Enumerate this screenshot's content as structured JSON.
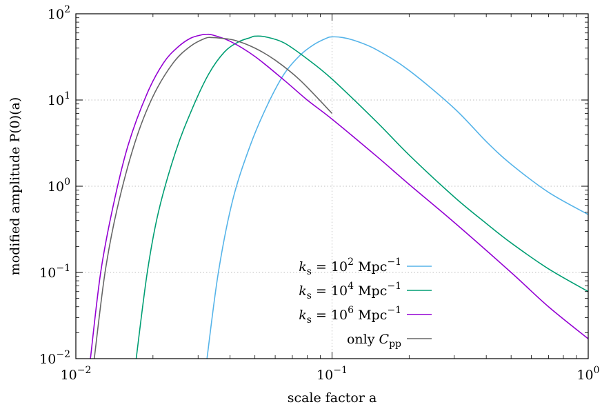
{
  "chart_data": {
    "type": "line",
    "xlabel": "scale factor a",
    "ylabel": "modified amplitude P(0)(a)",
    "x_scale": "log",
    "y_scale": "log",
    "xlim": [
      0.01,
      1
    ],
    "ylim": [
      0.01,
      100
    ],
    "grid": true,
    "legend_position": "bottom-center",
    "x_ticks": [
      {
        "base": "10",
        "exp": "−2"
      },
      {
        "base": "10",
        "exp": "−1"
      },
      {
        "base": "10",
        "exp": "0"
      }
    ],
    "y_ticks": [
      {
        "base": "10",
        "exp": "−2"
      },
      {
        "base": "10",
        "exp": "−1"
      },
      {
        "base": "10",
        "exp": "0"
      },
      {
        "base": "10",
        "exp": "1"
      },
      {
        "base": "10",
        "exp": "2"
      }
    ],
    "series": [
      {
        "legend": {
          "var": "k",
          "sub": "s",
          "mid": " = 10",
          "exp": "2",
          "unit": " Mpc",
          "unit_exp": "−1"
        },
        "color": "#56b4e9",
        "points": [
          [
            0.0325,
            0.01
          ],
          [
            0.036,
            0.1
          ],
          [
            0.041,
            0.7
          ],
          [
            0.048,
            3.0
          ],
          [
            0.056,
            8.8
          ],
          [
            0.065,
            20
          ],
          [
            0.075,
            33
          ],
          [
            0.085,
            44
          ],
          [
            0.095,
            52
          ],
          [
            0.1,
            54
          ],
          [
            0.11,
            53
          ],
          [
            0.125,
            48
          ],
          [
            0.15,
            38
          ],
          [
            0.2,
            22
          ],
          [
            0.3,
            8
          ],
          [
            0.4,
            3.3
          ],
          [
            0.5,
            1.8
          ],
          [
            0.7,
            0.85
          ],
          [
            1.0,
            0.47
          ]
        ]
      },
      {
        "legend": {
          "var": "k",
          "sub": "s",
          "mid": " = 10",
          "exp": "4",
          "unit": " Mpc",
          "unit_exp": "−1"
        },
        "color": "#009e73",
        "points": [
          [
            0.0172,
            0.01
          ],
          [
            0.019,
            0.1
          ],
          [
            0.021,
            0.5
          ],
          [
            0.0245,
            2.5
          ],
          [
            0.0285,
            8
          ],
          [
            0.033,
            20
          ],
          [
            0.038,
            36
          ],
          [
            0.043,
            47
          ],
          [
            0.048,
            53
          ],
          [
            0.05,
            55
          ],
          [
            0.055,
            54
          ],
          [
            0.065,
            46
          ],
          [
            0.08,
            30
          ],
          [
            0.1,
            17.5
          ],
          [
            0.15,
            5.5
          ],
          [
            0.2,
            2.3
          ],
          [
            0.3,
            0.75
          ],
          [
            0.4,
            0.37
          ],
          [
            0.5,
            0.22
          ],
          [
            0.7,
            0.11
          ],
          [
            1.0,
            0.06
          ]
        ]
      },
      {
        "legend": {
          "var": "k",
          "sub": "s",
          "mid": " = 10",
          "exp": "6",
          "unit": " Mpc",
          "unit_exp": "−1"
        },
        "color": "#9400d3",
        "points": [
          [
            0.0114,
            0.01
          ],
          [
            0.0125,
            0.1
          ],
          [
            0.014,
            0.6
          ],
          [
            0.016,
            3
          ],
          [
            0.019,
            12
          ],
          [
            0.022,
            27
          ],
          [
            0.025,
            41
          ],
          [
            0.028,
            52
          ],
          [
            0.031,
            57
          ],
          [
            0.032,
            57.5
          ],
          [
            0.034,
            57
          ],
          [
            0.04,
            48
          ],
          [
            0.05,
            32
          ],
          [
            0.065,
            17
          ],
          [
            0.08,
            10
          ],
          [
            0.1,
            6
          ],
          [
            0.15,
            2.2
          ],
          [
            0.2,
            1.05
          ],
          [
            0.3,
            0.38
          ],
          [
            0.5,
            0.1
          ],
          [
            0.7,
            0.04
          ],
          [
            1.0,
            0.017
          ]
        ]
      },
      {
        "legend": {
          "var": "only ",
          "sub": "",
          "mid": "",
          "exp": "",
          "unit": "C",
          "unit_sub": "pp",
          "unit_exp": ""
        },
        "color": "#666666",
        "points": [
          [
            0.0118,
            0.01
          ],
          [
            0.013,
            0.1
          ],
          [
            0.0145,
            0.55
          ],
          [
            0.017,
            3.2
          ],
          [
            0.02,
            11
          ],
          [
            0.024,
            27
          ],
          [
            0.028,
            42
          ],
          [
            0.032,
            52
          ],
          [
            0.034,
            53
          ],
          [
            0.037,
            52
          ],
          [
            0.042,
            49
          ],
          [
            0.05,
            40
          ],
          [
            0.06,
            29
          ],
          [
            0.075,
            17
          ],
          [
            0.1,
            7
          ]
        ]
      }
    ]
  }
}
